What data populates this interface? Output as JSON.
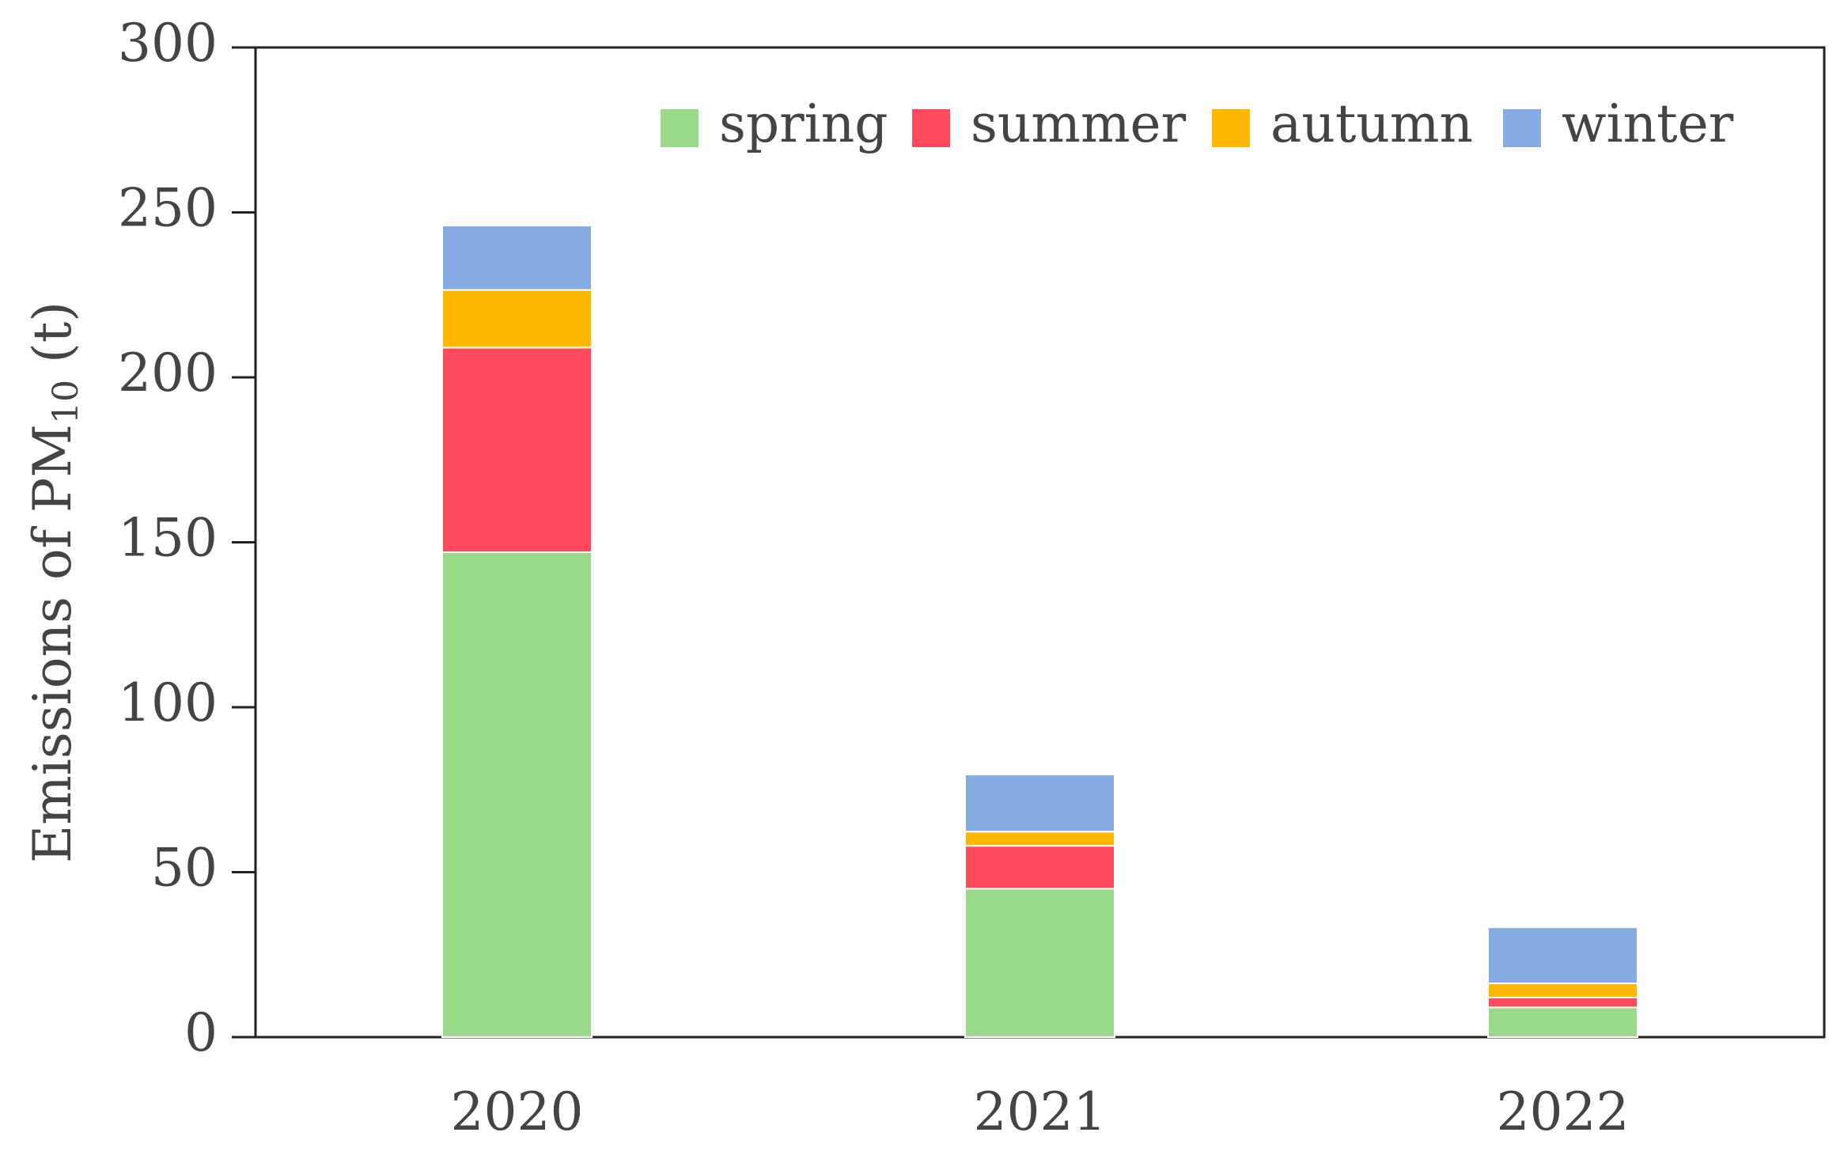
{
  "chart_data": {
    "type": "stacked_bar",
    "ylabel": [
      "Emissions of PM",
      "10",
      " (t)"
    ],
    "categories": [
      "2020",
      "2021",
      "2022"
    ],
    "series": [
      {
        "name": "spring",
        "color": "#98d98a",
        "values": [
          147,
          45,
          9
        ]
      },
      {
        "name": "summer",
        "color": "#ff4a5e",
        "values": [
          62,
          13,
          3
        ]
      },
      {
        "name": "autumn",
        "color": "#ffb800",
        "values": [
          17.5,
          4.3,
          4.3
        ]
      },
      {
        "name": "winter",
        "color": "#86abe2",
        "values": [
          19.5,
          17.3,
          17
        ]
      }
    ],
    "ylim": [
      0,
      300
    ],
    "yticks": [
      0,
      50,
      100,
      150,
      200,
      250,
      300
    ],
    "legend": "top-right"
  }
}
